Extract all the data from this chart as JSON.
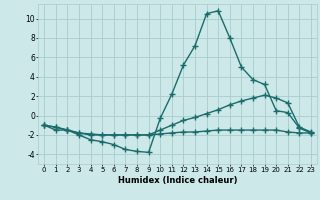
{
  "xlabel": "Humidex (Indice chaleur)",
  "x": [
    0,
    1,
    2,
    3,
    4,
    5,
    6,
    7,
    8,
    9,
    10,
    11,
    12,
    13,
    14,
    15,
    16,
    17,
    18,
    19,
    20,
    21,
    22,
    23
  ],
  "line1": [
    -1.0,
    -1.5,
    -1.5,
    -2.0,
    -2.5,
    -2.7,
    -3.0,
    -3.5,
    -3.7,
    -3.8,
    -0.3,
    2.2,
    5.2,
    7.2,
    10.5,
    10.8,
    8.0,
    5.0,
    3.7,
    3.2,
    0.5,
    0.3,
    -1.3,
    -1.8
  ],
  "line2": [
    -1.0,
    -1.2,
    -1.5,
    -1.8,
    -1.9,
    -2.0,
    -2.0,
    -2.0,
    -2.0,
    -2.0,
    -1.5,
    -1.0,
    -0.5,
    -0.2,
    0.2,
    0.6,
    1.1,
    1.5,
    1.8,
    2.1,
    1.8,
    1.3,
    -1.2,
    -1.7
  ],
  "line3": [
    -1.0,
    -1.2,
    -1.5,
    -1.8,
    -2.0,
    -2.0,
    -2.0,
    -2.0,
    -2.0,
    -2.0,
    -1.9,
    -1.8,
    -1.7,
    -1.7,
    -1.6,
    -1.5,
    -1.5,
    -1.5,
    -1.5,
    -1.5,
    -1.5,
    -1.7,
    -1.8,
    -1.8
  ],
  "bg_color": "#cce8e8",
  "grid_color": "#aacccc",
  "line_color": "#1a6b6b",
  "ylim": [
    -5,
    11.5
  ],
  "yticks": [
    -4,
    -2,
    0,
    2,
    4,
    6,
    8,
    10
  ],
  "marker": "+",
  "markersize": 4,
  "linewidth": 1.0
}
